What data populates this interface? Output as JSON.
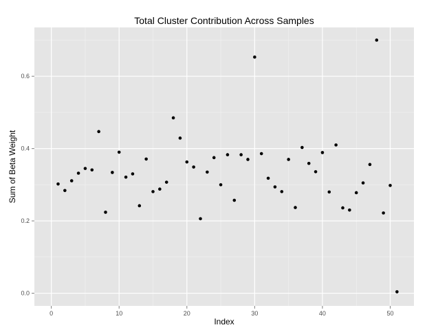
{
  "chart_data": {
    "type": "scatter",
    "title": "Total Cluster Contribution Across Samples",
    "xlabel": "Index",
    "ylabel": "Sum of Beta Weight",
    "xlim": [
      -2.5,
      53.5
    ],
    "ylim": [
      -0.035,
      0.735
    ],
    "x_ticks": [
      0,
      10,
      20,
      30,
      40,
      50
    ],
    "y_ticks": [
      0.0,
      0.2,
      0.4,
      0.6
    ],
    "x_tick_labels": [
      "0",
      "10",
      "20",
      "30",
      "40",
      "50"
    ],
    "y_tick_labels": [
      "0.0",
      "0.2",
      "0.4",
      "0.6"
    ],
    "grid": true,
    "legend": "none",
    "colors": {
      "panel": "#e5e5e5",
      "grid_major": "#ffffff",
      "grid_minor": "#f2f2f2",
      "point": "#000000"
    },
    "x": [
      1,
      2,
      3,
      4,
      5,
      6,
      7,
      8,
      9,
      10,
      11,
      12,
      13,
      14,
      15,
      16,
      17,
      18,
      19,
      20,
      21,
      22,
      23,
      24,
      25,
      26,
      27,
      28,
      29,
      30,
      31,
      32,
      33,
      34,
      35,
      36,
      37,
      38,
      39,
      40,
      41,
      42,
      43,
      44,
      45,
      46,
      47,
      48,
      49,
      50,
      51
    ],
    "y": [
      0.302,
      0.284,
      0.311,
      0.332,
      0.345,
      0.341,
      0.447,
      0.224,
      0.334,
      0.39,
      0.321,
      0.33,
      0.242,
      0.371,
      0.281,
      0.288,
      0.307,
      0.485,
      0.429,
      0.363,
      0.349,
      0.206,
      0.335,
      0.375,
      0.3,
      0.383,
      0.257,
      0.383,
      0.37,
      0.653,
      0.386,
      0.318,
      0.294,
      0.281,
      0.37,
      0.237,
      0.403,
      0.359,
      0.336,
      0.389,
      0.28,
      0.41,
      0.236,
      0.23,
      0.278,
      0.305,
      0.356,
      0.7,
      0.222,
      0.298,
      0.004
    ]
  }
}
